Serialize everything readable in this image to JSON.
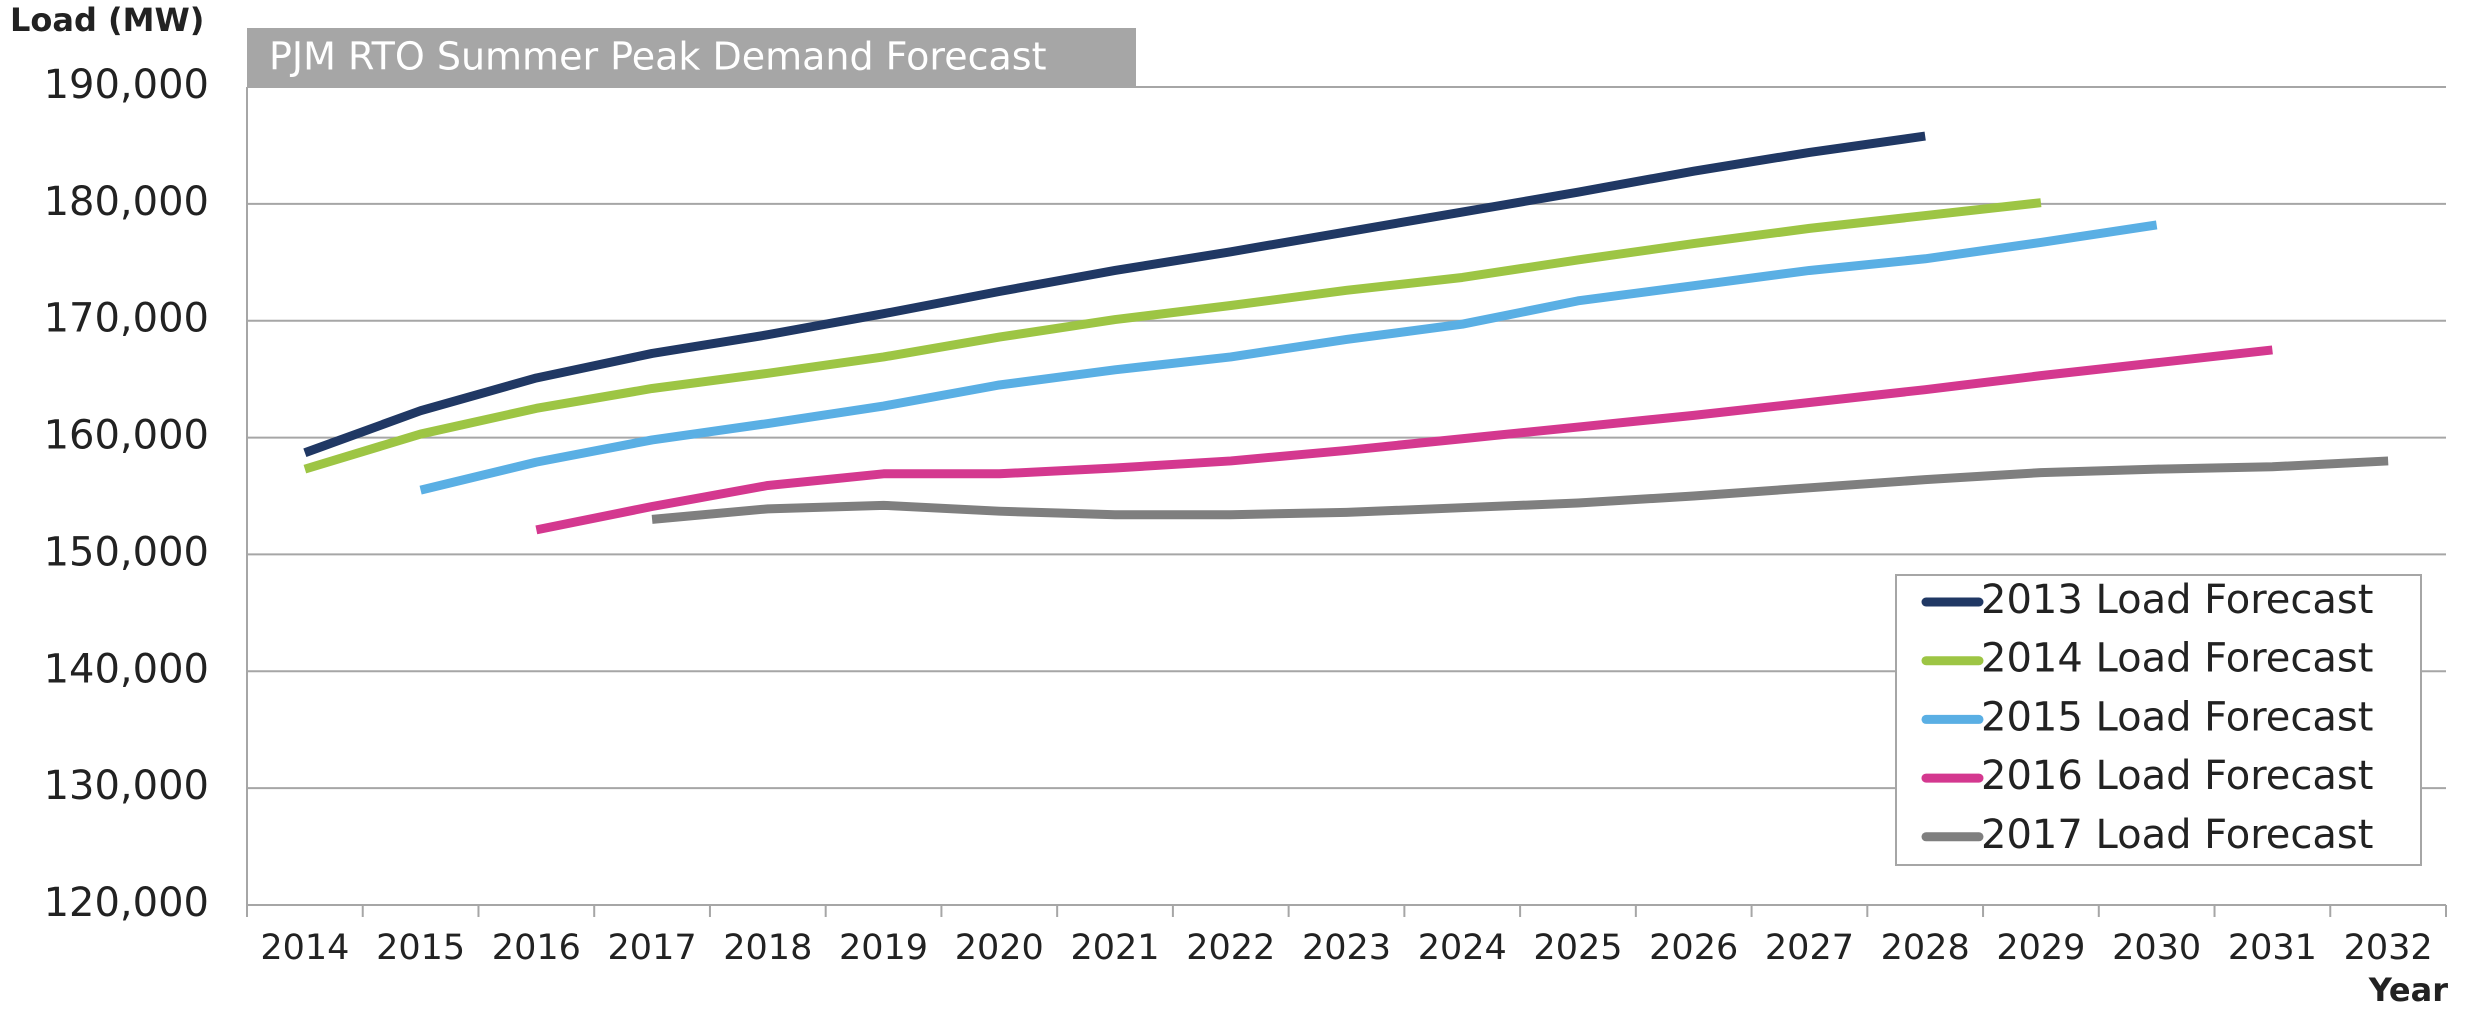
{
  "chart_data": {
    "type": "line",
    "title": "PJM RTO Summer Peak Demand Forecast",
    "y_label": "Load (MW)",
    "x_label": "Year",
    "categories": [
      "2014",
      "2015",
      "2016",
      "2017",
      "2018",
      "2019",
      "2020",
      "2021",
      "2022",
      "2023",
      "2024",
      "2025",
      "2026",
      "2027",
      "2028",
      "2029",
      "2030",
      "2031",
      "2032"
    ],
    "series": [
      {
        "name": "2013 Load Forecast",
        "color": "#203864",
        "values": [
          158700,
          162300,
          165100,
          167200,
          168800,
          170600,
          172500,
          174300,
          175900,
          177600,
          179300,
          181000,
          182800,
          184400,
          185800,
          null,
          null,
          null,
          null
        ]
      },
      {
        "name": "2014 Load Forecast",
        "color": "#9dc544",
        "values": [
          157300,
          160300,
          162500,
          164200,
          165500,
          166900,
          168600,
          170100,
          171300,
          172600,
          173700,
          175200,
          176600,
          177900,
          179000,
          180100,
          null,
          null,
          null
        ]
      },
      {
        "name": "2015 Load Forecast",
        "color": "#5aafe4",
        "values": [
          null,
          155500,
          157900,
          159800,
          161200,
          162700,
          164500,
          165800,
          166900,
          168400,
          169700,
          171700,
          173000,
          174300,
          175300,
          176700,
          178200,
          null,
          null
        ]
      },
      {
        "name": "2016 Load Forecast",
        "color": "#d4388f",
        "values": [
          null,
          null,
          152100,
          154100,
          155900,
          156900,
          156900,
          157400,
          158000,
          158900,
          159900,
          160900,
          161900,
          163000,
          164100,
          165300,
          166400,
          167500,
          null
        ]
      },
      {
        "name": "2017 Load Forecast",
        "color": "#7f7f7f",
        "values": [
          null,
          null,
          null,
          153000,
          153900,
          154200,
          153700,
          153400,
          153400,
          153600,
          154000,
          154400,
          155000,
          155700,
          156400,
          157000,
          157300,
          157500,
          158000
        ]
      }
    ],
    "ylim": [
      120000,
      190000
    ],
    "yticks": [
      {
        "value": 120000,
        "label": "120,000"
      },
      {
        "value": 130000,
        "label": "130,000"
      },
      {
        "value": 140000,
        "label": "140,000"
      },
      {
        "value": 150000,
        "label": "150,000"
      },
      {
        "value": 160000,
        "label": "160,000"
      },
      {
        "value": 170000,
        "label": "170,000"
      },
      {
        "value": 180000,
        "label": "180,000"
      },
      {
        "value": 190000,
        "label": "190,000"
      }
    ],
    "grid": true,
    "legend": "lower right"
  }
}
